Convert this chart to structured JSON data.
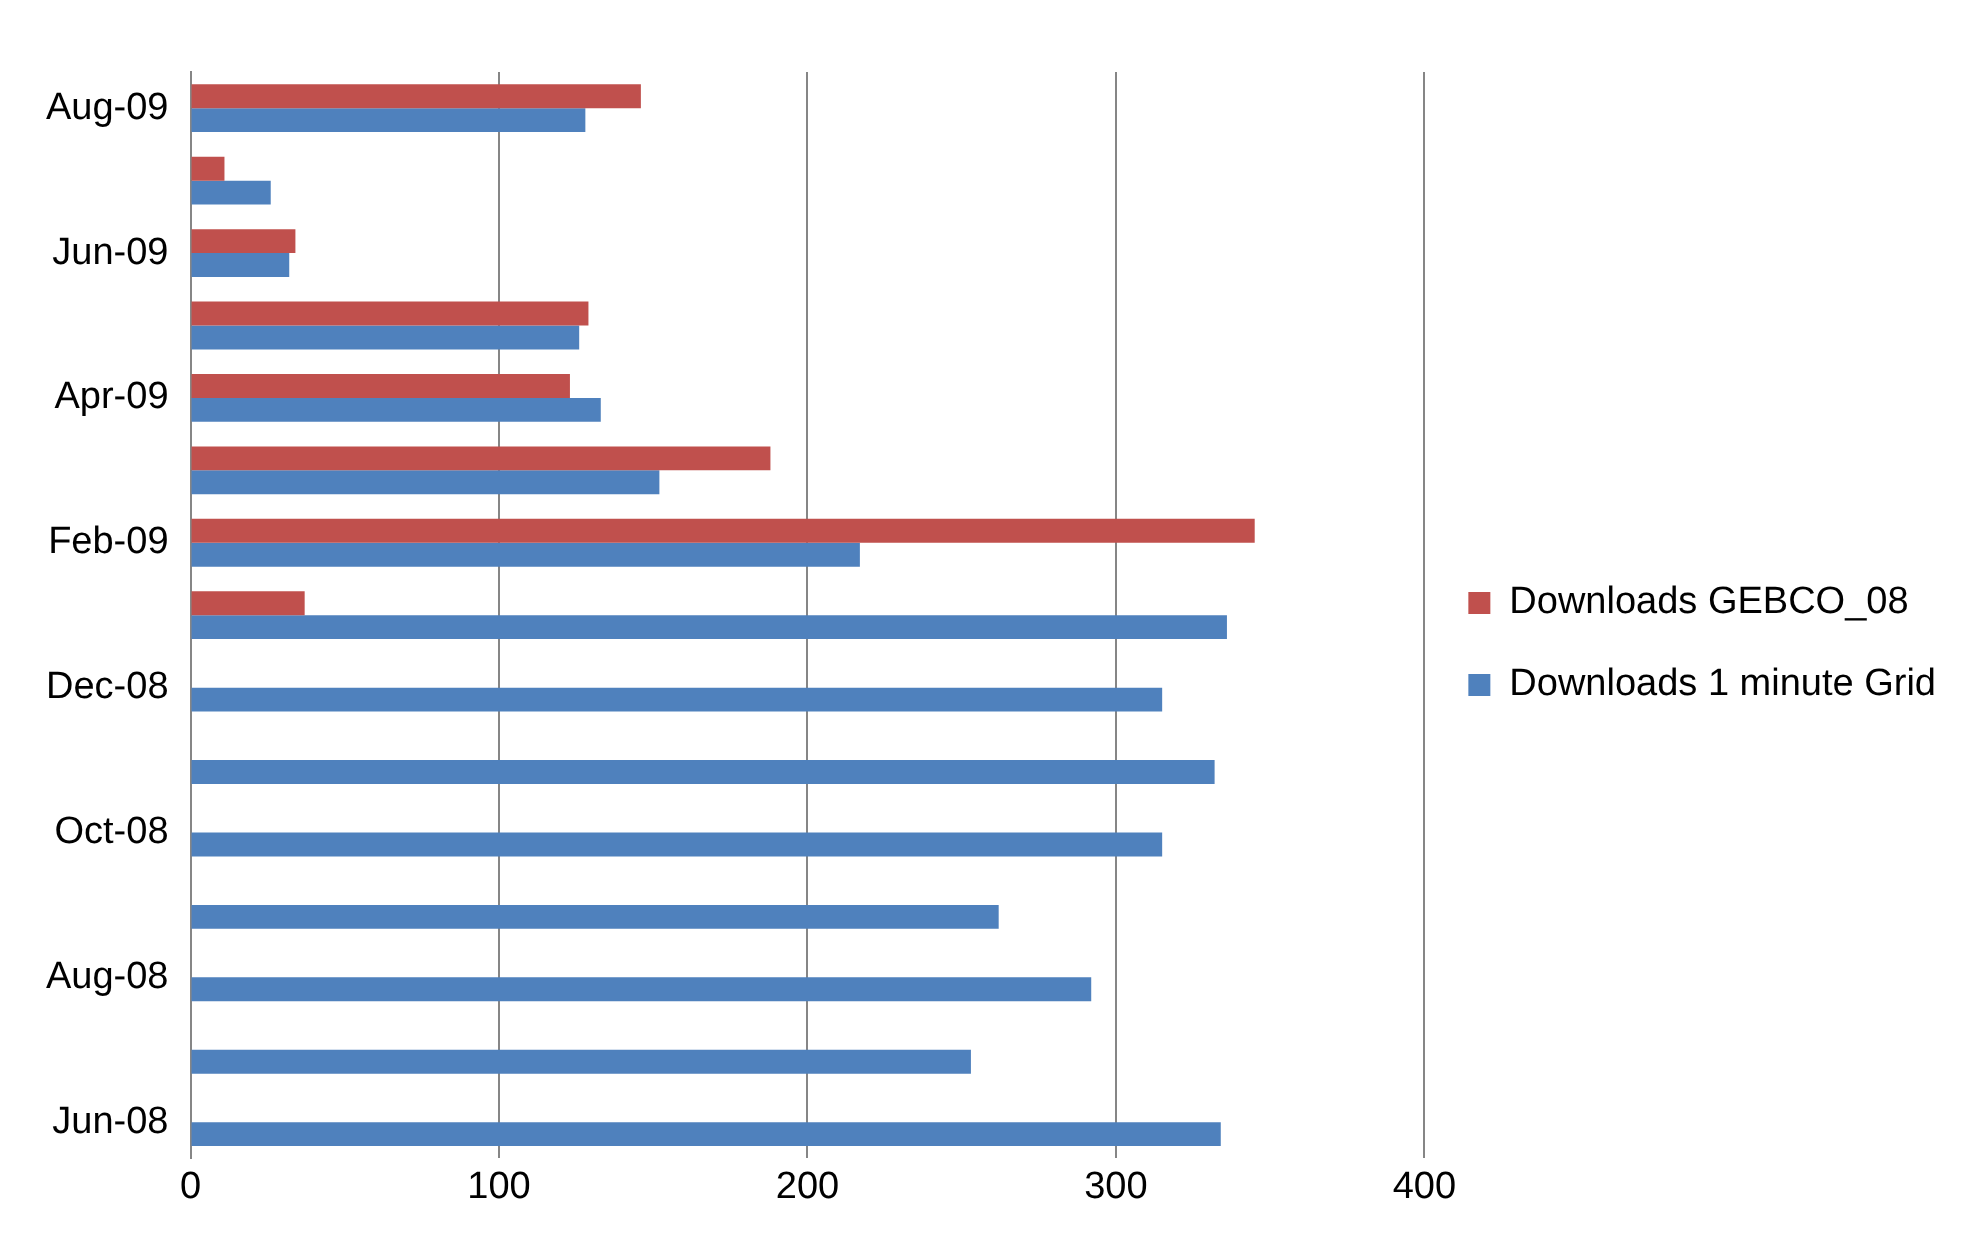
{
  "chart_data": {
    "type": "bar",
    "orientation": "horizontal",
    "categories": [
      "Aug-09",
      null,
      "Jun-09",
      null,
      "Apr-09",
      null,
      "Feb-09",
      null,
      "Dec-08",
      null,
      "Oct-08",
      null,
      "Aug-08",
      null,
      "Jun-08"
    ],
    "series": [
      {
        "name": "Downloads GEBCO_08",
        "color": "#c0504d",
        "values": [
          146,
          11,
          34,
          129,
          123,
          188,
          345,
          37,
          null,
          null,
          null,
          null,
          null,
          null,
          null
        ]
      },
      {
        "name": "Downloads 1 minute Grid",
        "color": "#4f81bd",
        "values": [
          128,
          26,
          32,
          126,
          133,
          152,
          217,
          336,
          315,
          332,
          315,
          262,
          292,
          253,
          334
        ]
      }
    ],
    "xlim": [
      0,
      400
    ],
    "xticks": [
      0,
      100,
      200,
      300,
      400
    ],
    "grid": "x",
    "legend": "right"
  }
}
